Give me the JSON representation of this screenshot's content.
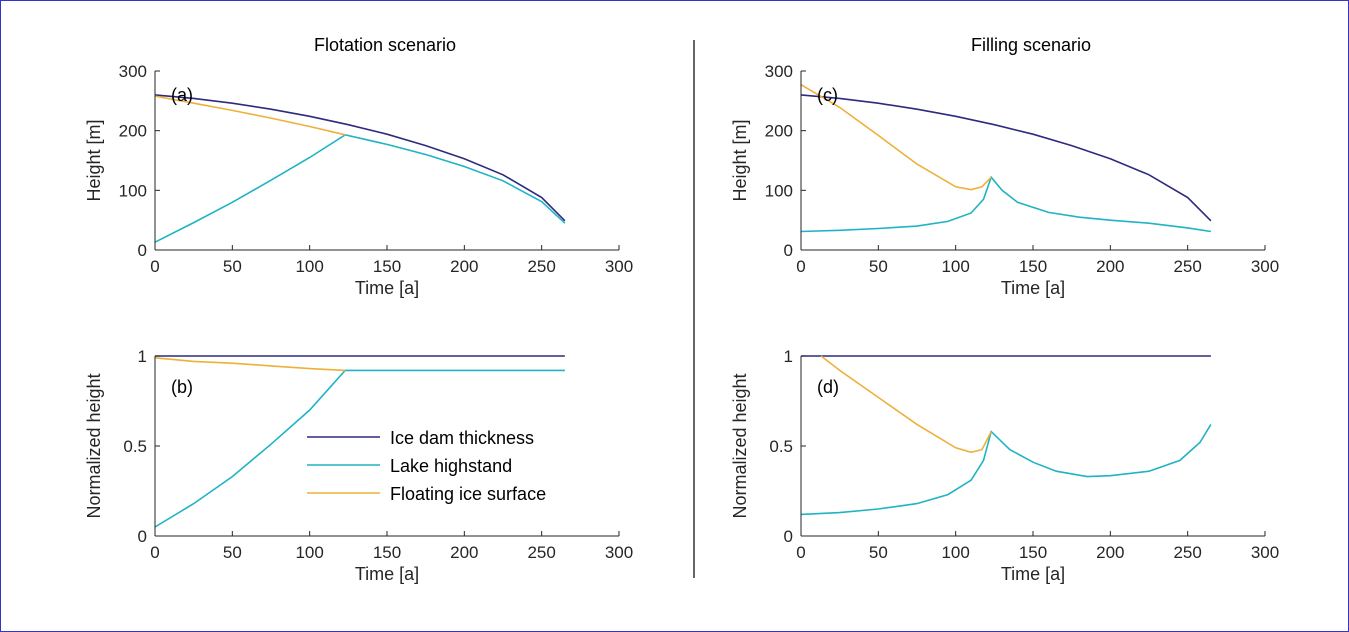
{
  "colors": {
    "ice_dam": "#2e2a7e",
    "lake": "#1fb3c4",
    "floating": "#eeb03a"
  },
  "chart_data": [
    {
      "type": "line",
      "panel": "(a)",
      "title": "Flotation scenario",
      "xlabel": "Time [a]",
      "ylabel": "Height [m]",
      "xlim": [
        0,
        300
      ],
      "ylim": [
        0,
        300
      ],
      "xticks": [
        0,
        50,
        100,
        150,
        200,
        250,
        300
      ],
      "yticks": [
        0,
        100,
        200,
        300
      ],
      "series": [
        {
          "name": "Ice dam thickness",
          "color_key": "ice_dam",
          "x": [
            0,
            25,
            50,
            75,
            100,
            125,
            150,
            175,
            200,
            225,
            250,
            265
          ],
          "y": [
            260,
            254,
            246,
            236,
            224,
            210,
            194,
            175,
            153,
            126,
            88,
            49
          ]
        },
        {
          "name": "Lake highstand",
          "color_key": "lake",
          "x": [
            0,
            25,
            50,
            75,
            100,
            123,
            150,
            175,
            200,
            225,
            250,
            265
          ],
          "y": [
            13,
            46,
            80,
            117,
            155,
            193,
            177,
            160,
            140,
            116,
            81,
            45
          ]
        },
        {
          "name": "Floating ice surface",
          "color_key": "floating",
          "x": [
            0,
            25,
            50,
            75,
            100,
            123
          ],
          "y": [
            258,
            246,
            234,
            221,
            207,
            193
          ]
        }
      ]
    },
    {
      "type": "line",
      "panel": "(b)",
      "xlabel": "Time [a]",
      "ylabel": "Normalized height",
      "xlim": [
        0,
        300
      ],
      "ylim": [
        0,
        1
      ],
      "xticks": [
        0,
        50,
        100,
        150,
        200,
        250,
        300
      ],
      "yticks": [
        0,
        0.5,
        1
      ],
      "legend": "center",
      "series": [
        {
          "name": "Ice dam thickness",
          "color_key": "ice_dam",
          "x": [
            0,
            265
          ],
          "y": [
            1,
            1
          ]
        },
        {
          "name": "Lake highstand",
          "color_key": "lake",
          "x": [
            0,
            25,
            50,
            75,
            100,
            123,
            265
          ],
          "y": [
            0.05,
            0.18,
            0.33,
            0.51,
            0.7,
            0.92,
            0.92
          ]
        },
        {
          "name": "Floating ice surface",
          "color_key": "floating",
          "x": [
            0,
            25,
            50,
            75,
            100,
            123
          ],
          "y": [
            0.99,
            0.97,
            0.96,
            0.945,
            0.93,
            0.92
          ]
        }
      ]
    },
    {
      "type": "line",
      "panel": "(c)",
      "title": "Filling scenario",
      "xlabel": "Time [a]",
      "ylabel": "Height [m]",
      "xlim": [
        0,
        300
      ],
      "ylim": [
        0,
        300
      ],
      "xticks": [
        0,
        50,
        100,
        150,
        200,
        250,
        300
      ],
      "yticks": [
        0,
        100,
        200,
        300
      ],
      "series": [
        {
          "name": "Ice dam thickness",
          "color_key": "ice_dam",
          "x": [
            0,
            25,
            50,
            75,
            100,
            125,
            150,
            175,
            200,
            225,
            250,
            265
          ],
          "y": [
            260,
            254,
            246,
            236,
            224,
            210,
            194,
            175,
            153,
            126,
            88,
            49
          ]
        },
        {
          "name": "Lake highstand",
          "color_key": "lake",
          "x": [
            0,
            25,
            50,
            75,
            95,
            110,
            118,
            123,
            130,
            140,
            160,
            180,
            200,
            225,
            250,
            265
          ],
          "y": [
            31,
            33,
            36,
            40,
            48,
            62,
            85,
            122,
            100,
            80,
            63,
            55,
            50,
            45,
            37,
            31
          ]
        },
        {
          "name": "Floating ice surface",
          "color_key": "floating",
          "x": [
            0,
            25,
            50,
            75,
            100,
            110,
            117,
            123
          ],
          "y": [
            277,
            239,
            192,
            144,
            106,
            101,
            106,
            122
          ]
        }
      ]
    },
    {
      "type": "line",
      "panel": "(d)",
      "xlabel": "Time [a]",
      "ylabel": "Normalized height",
      "xlim": [
        0,
        300
      ],
      "ylim": [
        0,
        1
      ],
      "xticks": [
        0,
        50,
        100,
        150,
        200,
        250,
        300
      ],
      "yticks": [
        0,
        0.5,
        1
      ],
      "series": [
        {
          "name": "Ice dam thickness",
          "color_key": "ice_dam",
          "x": [
            0,
            265
          ],
          "y": [
            1,
            1
          ]
        },
        {
          "name": "Lake highstand",
          "color_key": "lake",
          "x": [
            0,
            25,
            50,
            75,
            95,
            110,
            118,
            123,
            135,
            150,
            165,
            185,
            200,
            225,
            245,
            258,
            265
          ],
          "y": [
            0.12,
            0.13,
            0.15,
            0.18,
            0.23,
            0.31,
            0.42,
            0.58,
            0.48,
            0.41,
            0.36,
            0.33,
            0.335,
            0.36,
            0.42,
            0.52,
            0.62
          ]
        },
        {
          "name": "Floating ice surface",
          "color_key": "floating",
          "x": [
            13,
            25,
            50,
            75,
            100,
            110,
            117,
            123
          ],
          "y": [
            1.0,
            0.92,
            0.77,
            0.62,
            0.49,
            0.465,
            0.48,
            0.58
          ]
        }
      ]
    }
  ]
}
